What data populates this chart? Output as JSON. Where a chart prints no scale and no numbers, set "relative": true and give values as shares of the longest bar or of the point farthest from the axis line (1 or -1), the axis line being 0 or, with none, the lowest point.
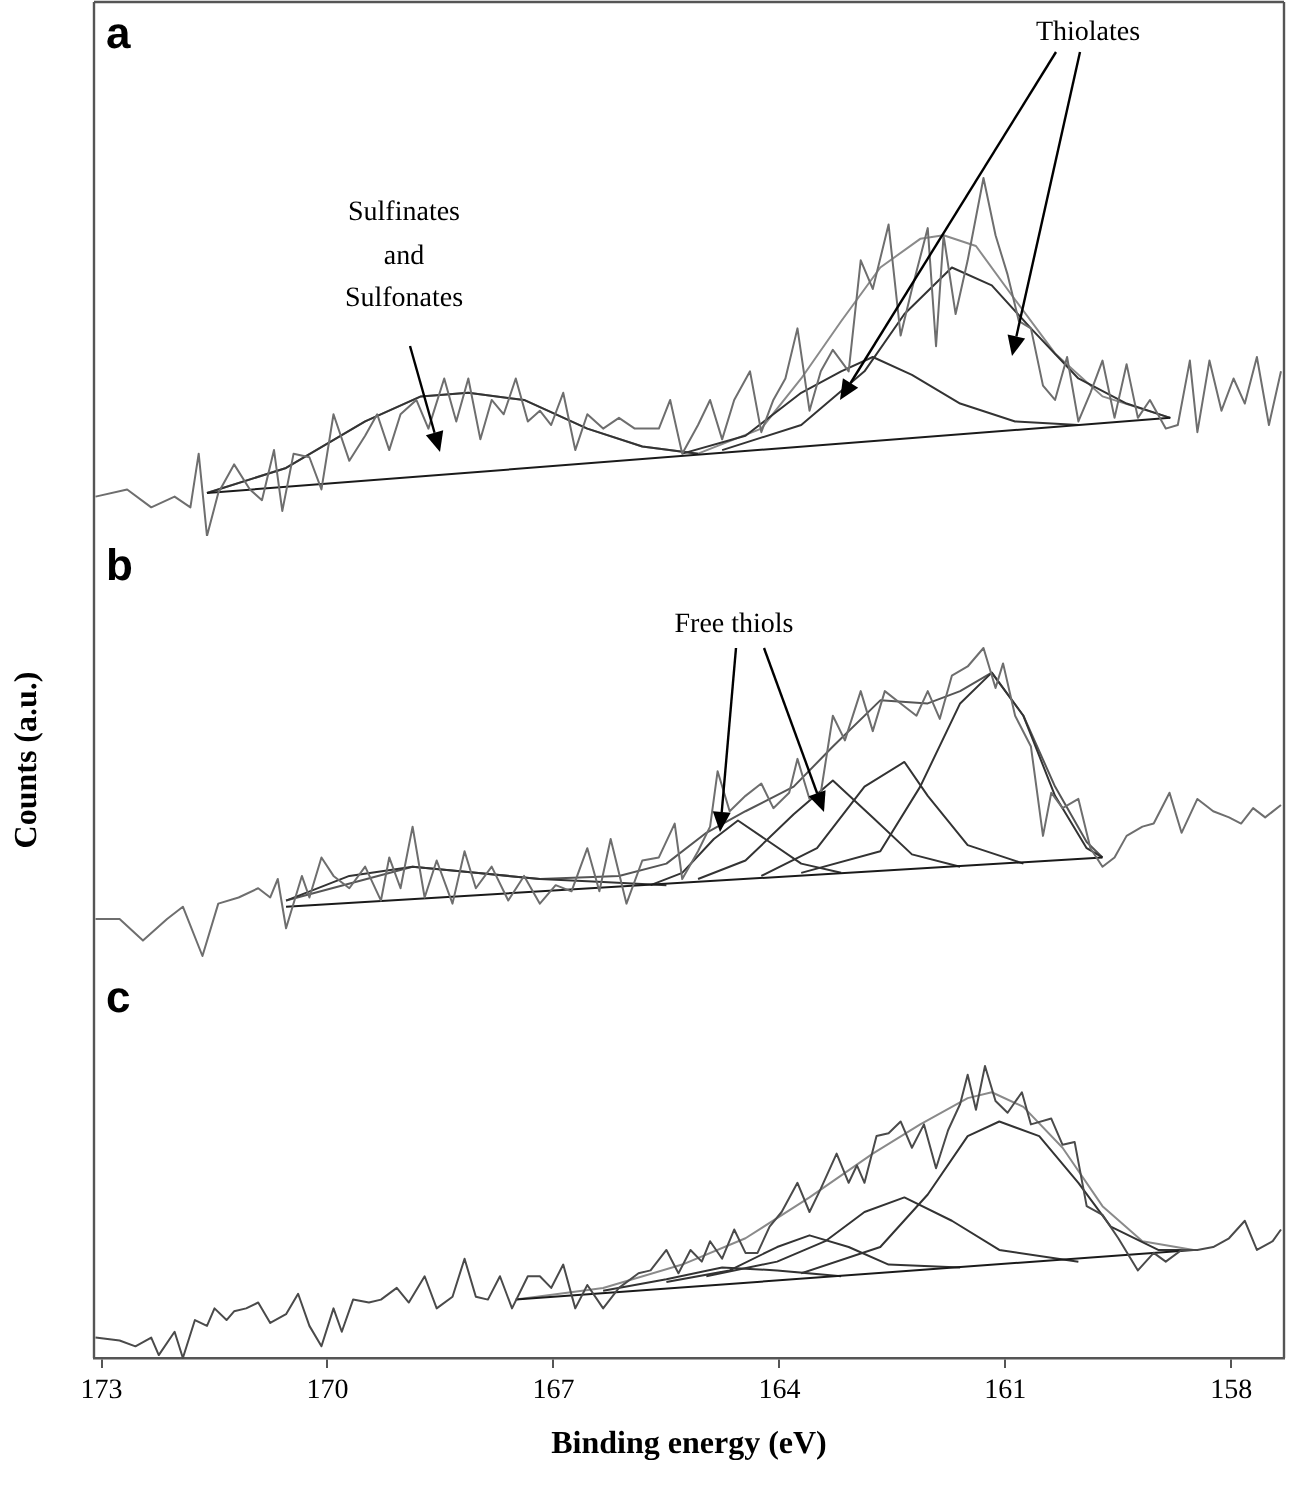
{
  "chart_data": [
    {
      "type": "line",
      "title": "a",
      "relative": true,
      "xlim": [
        173.1,
        157.3
      ],
      "tick_labels": false,
      "marker": "none",
      "annotations": [
        "Sulfinates and Sulfonates",
        "Thiolates"
      ],
      "series": [
        {
          "color": "#6e6e6e",
          "x": [
            173.08,
            172.66,
            172.34,
            172.03,
            171.82,
            171.71,
            171.6,
            171.45,
            171.24,
            171.03,
            170.87,
            170.71,
            170.6,
            170.45,
            170.24,
            170.08,
            169.92,
            169.71,
            169.5,
            169.34,
            169.18,
            169.03,
            168.82,
            168.66,
            168.45,
            168.29,
            168.13,
            167.97,
            167.82,
            167.66,
            167.5,
            167.34,
            167.18,
            167.03,
            166.87,
            166.71,
            166.55,
            166.34,
            166.13,
            165.92,
            165.6,
            165.45,
            165.29,
            165.08,
            164.92,
            164.76,
            164.6,
            164.39,
            164.24,
            164.08,
            163.92,
            163.76,
            163.6,
            163.45,
            163.29,
            163.08,
            162.92,
            162.76,
            162.55,
            162.39,
            162.24,
            162.03,
            161.92,
            161.82,
            161.66,
            161.5,
            161.29,
            161.13,
            160.97,
            160.82,
            160.66,
            160.5,
            160.34,
            160.18,
            160.03,
            159.87,
            159.71,
            159.55,
            159.39,
            159.24,
            159.08,
            158.87,
            158.71,
            158.55,
            158.45,
            158.29,
            158.13,
            157.97,
            157.82,
            157.66,
            157.5,
            157.34
          ],
          "values": [
            0.11,
            0.13,
            0.08,
            0.11,
            0.08,
            0.23,
            0,
            0.12,
            0.2,
            0.13,
            0.1,
            0.24,
            0.07,
            0.23,
            0.22,
            0.13,
            0.34,
            0.21,
            0.28,
            0.34,
            0.24,
            0.34,
            0.38,
            0.3,
            0.44,
            0.32,
            0.44,
            0.27,
            0.38,
            0.34,
            0.44,
            0.32,
            0.35,
            0.31,
            0.4,
            0.24,
            0.34,
            0.3,
            0.33,
            0.3,
            0.3,
            0.38,
            0.23,
            0.31,
            0.38,
            0.27,
            0.38,
            0.46,
            0.29,
            0.38,
            0.44,
            0.58,
            0.35,
            0.46,
            0.52,
            0.46,
            0.77,
            0.69,
            0.87,
            0.56,
            0.69,
            0.86,
            0.53,
            0.84,
            0.62,
            0.77,
            1,
            0.84,
            0.73,
            0.6,
            0.58,
            0.42,
            0.38,
            0.5,
            0.32,
            0.4,
            0.49,
            0.33,
            0.48,
            0.33,
            0.38,
            0.3,
            0.31,
            0.49,
            0.29,
            0.49,
            0.35,
            0.44,
            0.37,
            0.5,
            0.31,
            0.46
          ]
        },
        {
          "color": "#1a1a1a",
          "x": [
            171.6,
            158.81
          ],
          "values": [
            0.12,
            0.33
          ]
        },
        {
          "color": "#333333",
          "x": [
            171.6,
            170.55,
            169.5,
            168.76,
            168.13,
            167.39,
            166.55,
            165.82,
            165.08
          ],
          "values": [
            0.12,
            0.19,
            0.32,
            0.39,
            0.4,
            0.38,
            0.3,
            0.25,
            0.23
          ]
        },
        {
          "color": "#333333",
          "x": [
            165.29,
            164.45,
            163.71,
            163.18,
            162.76,
            162.24,
            161.6,
            160.87,
            160.03
          ],
          "values": [
            0.23,
            0.28,
            0.4,
            0.46,
            0.5,
            0.45,
            0.37,
            0.32,
            0.31
          ]
        },
        {
          "color": "#333333",
          "x": [
            164.76,
            163.71,
            162.87,
            162.34,
            161.71,
            161.18,
            160.66,
            160.03,
            159.39,
            158.81
          ],
          "values": [
            0.24,
            0.31,
            0.46,
            0.62,
            0.75,
            0.7,
            0.58,
            0.44,
            0.37,
            0.33
          ]
        },
        {
          "color": "#8a8a8a",
          "x": [
            171.6,
            170.55,
            169.5,
            168.76,
            168.13,
            167.39,
            166.55,
            165.82,
            165.08,
            164.24,
            163.71,
            163.18,
            162.66,
            162.13,
            161.82,
            161.39,
            160.87,
            160.34,
            159.71,
            158.81
          ],
          "values": [
            0.12,
            0.19,
            0.32,
            0.39,
            0.4,
            0.38,
            0.3,
            0.25,
            0.23,
            0.3,
            0.44,
            0.6,
            0.75,
            0.83,
            0.84,
            0.81,
            0.66,
            0.51,
            0.39,
            0.33
          ]
        }
      ]
    },
    {
      "type": "line",
      "title": "b",
      "ylabel": "Counts (a.u.)",
      "relative": true,
      "xlim": [
        173.1,
        157.3
      ],
      "tick_labels": false,
      "marker": "none",
      "annotations": [
        "Free thiols"
      ],
      "series": [
        {
          "color": "#6e6e6e",
          "x": [
            173.08,
            172.76,
            172.45,
            172.13,
            171.92,
            171.66,
            171.45,
            171.18,
            170.92,
            170.76,
            170.66,
            170.55,
            170.34,
            170.24,
            170.08,
            169.92,
            169.71,
            169.5,
            169.29,
            169.18,
            169.03,
            168.87,
            168.71,
            168.55,
            168.34,
            168.18,
            168.03,
            167.82,
            167.6,
            167.39,
            167.18,
            166.97,
            166.76,
            166.55,
            166.39,
            166.24,
            166.03,
            165.82,
            165.6,
            165.39,
            165.29,
            165.08,
            164.92,
            164.82,
            164.66,
            164.45,
            164.24,
            164.08,
            163.87,
            163.76,
            163.6,
            163.45,
            163.29,
            163.13,
            162.92,
            162.76,
            162.6,
            162.39,
            162.18,
            162.03,
            161.87,
            161.71,
            161.5,
            161.29,
            161.13,
            161.03,
            160.87,
            160.66,
            160.5,
            160.39,
            160.24,
            160.03,
            159.87,
            159.71,
            159.55,
            159.39,
            159.18,
            159.03,
            158.82,
            158.66,
            158.45,
            158.24,
            158.03,
            157.87,
            157.71,
            157.55,
            157.34
          ],
          "values": [
            0.12,
            0.12,
            0.05,
            0.12,
            0.16,
            0,
            0.17,
            0.19,
            0.22,
            0.19,
            0.25,
            0.09,
            0.26,
            0.19,
            0.32,
            0.26,
            0.22,
            0.29,
            0.18,
            0.32,
            0.22,
            0.42,
            0.19,
            0.31,
            0.17,
            0.34,
            0.22,
            0.29,
            0.18,
            0.26,
            0.17,
            0.23,
            0.21,
            0.35,
            0.21,
            0.38,
            0.17,
            0.31,
            0.32,
            0.43,
            0.25,
            0.34,
            0.42,
            0.6,
            0.47,
            0.52,
            0.56,
            0.48,
            0.53,
            0.64,
            0.51,
            0.53,
            0.78,
            0.7,
            0.86,
            0.73,
            0.86,
            0.82,
            0.78,
            0.86,
            0.77,
            0.91,
            0.94,
            1,
            0.87,
            0.95,
            0.78,
            0.68,
            0.39,
            0.53,
            0.48,
            0.51,
            0.35,
            0.29,
            0.32,
            0.39,
            0.42,
            0.43,
            0.53,
            0.4,
            0.51,
            0.47,
            0.45,
            0.43,
            0.48,
            0.45,
            0.49
          ]
        },
        {
          "color": "#1a1a1a",
          "x": [
            170.55,
            159.71
          ],
          "values": [
            0.16,
            0.32
          ]
        },
        {
          "color": "#333333",
          "x": [
            170.55,
            169.71,
            168.87,
            168.03,
            167.18,
            166.34,
            165.5
          ],
          "values": [
            0.18,
            0.26,
            0.29,
            0.27,
            0.25,
            0.24,
            0.23
          ]
        },
        {
          "color": "#333333",
          "x": [
            165.71,
            165.29,
            164.87,
            164.55,
            164.13,
            163.71,
            163.18
          ],
          "values": [
            0.23,
            0.27,
            0.38,
            0.44,
            0.37,
            0.3,
            0.27
          ]
        },
        {
          "color": "#333333",
          "x": [
            165.08,
            164.45,
            163.81,
            163.29,
            162.76,
            162.24,
            161.6
          ],
          "values": [
            0.25,
            0.31,
            0.46,
            0.57,
            0.45,
            0.33,
            0.29
          ]
        },
        {
          "color": "#333333",
          "x": [
            164.24,
            163.5,
            162.87,
            162.34,
            162.03,
            161.5,
            160.76
          ],
          "values": [
            0.26,
            0.35,
            0.55,
            0.63,
            0.52,
            0.36,
            0.3
          ]
        },
        {
          "color": "#333333",
          "x": [
            163.71,
            162.66,
            162.13,
            161.6,
            161.18,
            160.76,
            160.34,
            159.92,
            159.71
          ],
          "values": [
            0.27,
            0.34,
            0.55,
            0.82,
            0.92,
            0.78,
            0.52,
            0.35,
            0.32
          ]
        },
        {
          "color": "#555555",
          "x": [
            170.55,
            168.87,
            167.18,
            166.13,
            165.5,
            164.97,
            164.45,
            163.81,
            163.29,
            162.66,
            162.03,
            161.6,
            161.18,
            160.76,
            160.34,
            159.92,
            159.71
          ],
          "values": [
            0.18,
            0.29,
            0.25,
            0.26,
            0.3,
            0.4,
            0.47,
            0.55,
            0.68,
            0.83,
            0.82,
            0.86,
            0.92,
            0.78,
            0.55,
            0.37,
            0.32
          ]
        }
      ]
    },
    {
      "type": "line",
      "title": "c",
      "xlabel": "Binding energy (eV)",
      "relative": true,
      "xlim": [
        173.1,
        157.3
      ],
      "xticks": [
        173,
        170,
        167,
        164,
        161,
        158
      ],
      "tick_labels": "x",
      "marker": "none",
      "series": [
        {
          "color": "#4a4a4a",
          "x": [
            173.08,
            172.76,
            172.55,
            172.34,
            172.24,
            172.03,
            171.92,
            171.76,
            171.6,
            171.5,
            171.34,
            171.24,
            171.08,
            170.92,
            170.76,
            170.55,
            170.39,
            170.24,
            170.08,
            169.92,
            169.81,
            169.66,
            169.45,
            169.29,
            169.08,
            168.92,
            168.71,
            168.55,
            168.34,
            168.18,
            168.03,
            167.87,
            167.71,
            167.55,
            167.34,
            167.18,
            167.03,
            166.87,
            166.71,
            166.55,
            166.34,
            166.13,
            165.87,
            165.71,
            165.5,
            165.34,
            165.18,
            165.03,
            164.92,
            164.76,
            164.6,
            164.45,
            164.29,
            164.13,
            163.97,
            163.76,
            163.6,
            163.45,
            163.24,
            163.08,
            162.97,
            162.87,
            162.71,
            162.55,
            162.39,
            162.24,
            162.08,
            161.92,
            161.76,
            161.6,
            161.5,
            161.39,
            161.27,
            161.13,
            160.97,
            160.78,
            160.66,
            160.39,
            160.24,
            160.08,
            159.92,
            159.71,
            159.5,
            159.24,
            159.03,
            158.87,
            158.66,
            158.45,
            158.24,
            158.03,
            157.82,
            157.66,
            157.45,
            157.34
          ],
          "values": [
            0.07,
            0.06,
            0.04,
            0.07,
            0.01,
            0.09,
            0,
            0.13,
            0.11,
            0.17,
            0.13,
            0.16,
            0.17,
            0.19,
            0.12,
            0.15,
            0.22,
            0.11,
            0.04,
            0.17,
            0.09,
            0.2,
            0.19,
            0.2,
            0.24,
            0.19,
            0.28,
            0.17,
            0.21,
            0.34,
            0.21,
            0.2,
            0.28,
            0.17,
            0.28,
            0.28,
            0.24,
            0.32,
            0.17,
            0.25,
            0.17,
            0.24,
            0.29,
            0.3,
            0.37,
            0.29,
            0.37,
            0.33,
            0.4,
            0.34,
            0.44,
            0.36,
            0.36,
            0.45,
            0.5,
            0.6,
            0.5,
            0.58,
            0.7,
            0.6,
            0.66,
            0.6,
            0.76,
            0.77,
            0.81,
            0.72,
            0.8,
            0.65,
            0.78,
            0.87,
            0.97,
            0.85,
            1,
            0.88,
            0.84,
            0.91,
            0.8,
            0.82,
            0.73,
            0.74,
            0.52,
            0.49,
            0.41,
            0.3,
            0.36,
            0.33,
            0.37,
            0.37,
            0.38,
            0.41,
            0.47,
            0.37,
            0.4,
            0.44
          ]
        },
        {
          "color": "#1a1a1a",
          "x": [
            167.5,
            158.5
          ],
          "values": [
            0.2,
            0.37
          ]
        },
        {
          "color": "#333333",
          "x": [
            166.34,
            165.5,
            164.76,
            164.03,
            163.18
          ],
          "values": [
            0.23,
            0.27,
            0.31,
            0.3,
            0.28
          ]
        },
        {
          "color": "#333333",
          "x": [
            165.5,
            164.66,
            164.03,
            163.6,
            163.08,
            162.55,
            161.6
          ],
          "values": [
            0.26,
            0.3,
            0.38,
            0.42,
            0.38,
            0.32,
            0.31
          ]
        },
        {
          "color": "#333333",
          "x": [
            164.97,
            164.03,
            163.39,
            162.87,
            162.34,
            161.71,
            161.08,
            160.03
          ],
          "values": [
            0.28,
            0.33,
            0.4,
            0.5,
            0.55,
            0.47,
            0.37,
            0.33
          ]
        },
        {
          "color": "#333333",
          "x": [
            163.71,
            162.66,
            162.03,
            161.5,
            161.08,
            160.55,
            160.03,
            159.6,
            158.97,
            158.5
          ],
          "values": [
            0.29,
            0.38,
            0.56,
            0.76,
            0.81,
            0.76,
            0.6,
            0.45,
            0.37,
            0.37
          ]
        },
        {
          "color": "#8a8a8a",
          "x": [
            167.5,
            166.34,
            165.29,
            164.45,
            163.6,
            162.76,
            162.13,
            161.5,
            161.18,
            160.76,
            160.24,
            159.71,
            159.18,
            158.5
          ],
          "values": [
            0.2,
            0.24,
            0.32,
            0.41,
            0.55,
            0.7,
            0.8,
            0.89,
            0.91,
            0.86,
            0.72,
            0.52,
            0.4,
            0.37
          ]
        }
      ]
    }
  ]
}
